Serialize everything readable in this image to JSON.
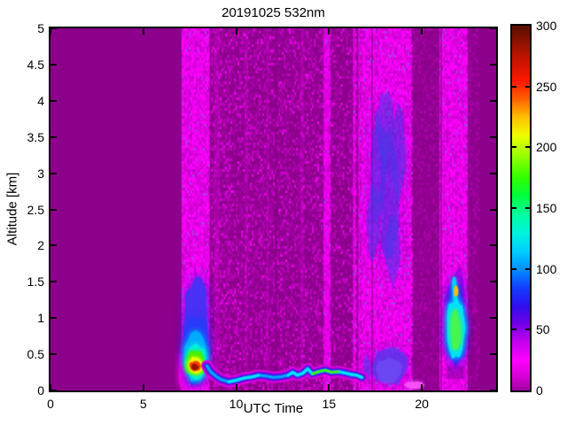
{
  "chart_data": {
    "type": "heatmap",
    "title": "20191025 532nm",
    "xlabel": "UTC Time",
    "ylabel": "Altitude [km]",
    "xlim": [
      0,
      24
    ],
    "ylim": [
      0,
      5
    ],
    "clim": [
      0,
      300
    ],
    "x_ticks": [
      {
        "v": 0,
        "label": "0"
      },
      {
        "v": 5,
        "label": "5"
      },
      {
        "v": 10,
        "label": "10"
      },
      {
        "v": 15,
        "label": "15"
      },
      {
        "v": 20,
        "label": "20"
      }
    ],
    "y_ticks": [
      {
        "v": 0,
        "label": "0"
      },
      {
        "v": 0.5,
        "label": "0.5"
      },
      {
        "v": 1,
        "label": "1"
      },
      {
        "v": 1.5,
        "label": "1.5"
      },
      {
        "v": 2,
        "label": "2"
      },
      {
        "v": 2.5,
        "label": "2.5"
      },
      {
        "v": 3,
        "label": "3"
      },
      {
        "v": 3.5,
        "label": "3.5"
      },
      {
        "v": 4,
        "label": "4"
      },
      {
        "v": 4.5,
        "label": "4.5"
      },
      {
        "v": 5,
        "label": "5"
      }
    ],
    "colorbar_ticks": [
      {
        "v": 0,
        "label": "0"
      },
      {
        "v": 50,
        "label": "50"
      },
      {
        "v": 100,
        "label": "100"
      },
      {
        "v": 150,
        "label": "150"
      },
      {
        "v": 200,
        "label": "200"
      },
      {
        "v": 250,
        "label": "250"
      },
      {
        "v": 300,
        "label": "300"
      }
    ],
    "background_color": "#8C008C",
    "colormap_stops": [
      [
        0,
        "#A000A0"
      ],
      [
        12,
        "#D800D8"
      ],
      [
        25,
        "#FF00FF"
      ],
      [
        40,
        "#C800F0"
      ],
      [
        55,
        "#7100E8"
      ],
      [
        70,
        "#3010F0"
      ],
      [
        85,
        "#1440FF"
      ],
      [
        100,
        "#0090FF"
      ],
      [
        115,
        "#00D0FF"
      ],
      [
        130,
        "#00F5E0"
      ],
      [
        145,
        "#00FFA0"
      ],
      [
        160,
        "#00FF40"
      ],
      [
        175,
        "#30FF00"
      ],
      [
        195,
        "#A0FF00"
      ],
      [
        210,
        "#F0FF00"
      ],
      [
        225,
        "#FFC000"
      ],
      [
        240,
        "#FF6000"
      ],
      [
        255,
        "#FF1800"
      ],
      [
        275,
        "#BE1400"
      ],
      [
        300,
        "#5A1000"
      ]
    ],
    "speckle": {
      "bright": {
        "base": "#D800D8",
        "density": 0.8,
        "colors": [
          "#FF00FF",
          "#F000F0",
          "#E400E4",
          "#C400CC",
          "#AE3CE6"
        ],
        "weights": [
          0.3,
          0.25,
          0.25,
          0.15,
          0.05
        ]
      },
      "medium": {
        "base": "#8C008C",
        "density": 0.5,
        "colors": [
          "#9C009C",
          "#AE00AE",
          "#C200C2",
          "#DA00DA",
          "#F000F0"
        ],
        "weights": [
          0.35,
          0.3,
          0.2,
          0.1,
          0.05
        ]
      },
      "faint": {
        "base": "#8C008C",
        "density": 0.45,
        "colors": [
          "#980098",
          "#A400A4",
          "#B200B2"
        ],
        "weights": [
          0.5,
          0.35,
          0.15
        ]
      }
    },
    "noise_bands": [
      {
        "t0": 7.06,
        "t1": 8.55,
        "type": "bright"
      },
      {
        "t0": 8.55,
        "t1": 9.6,
        "type": "medium",
        "density": 0.62
      },
      {
        "t0": 9.6,
        "t1": 14.72,
        "type": "medium",
        "density": 0.5
      },
      {
        "t0": 14.72,
        "t1": 15.06,
        "type": "bright",
        "density": 0.7
      },
      {
        "t0": 15.06,
        "t1": 16.28,
        "type": "medium",
        "density": 0.42
      },
      {
        "t0": 16.3,
        "t1": 16.44,
        "type": "bright",
        "density": 0.6
      },
      {
        "t0": 16.44,
        "t1": 16.58,
        "type": "medium",
        "density": 0.4
      },
      {
        "t0": 16.58,
        "t1": 16.72,
        "type": "bright",
        "density": 0.55
      },
      {
        "t0": 16.75,
        "t1": 19.45,
        "type": "bright"
      },
      {
        "t0": 19.45,
        "t1": 20.95,
        "type": "faint"
      },
      {
        "t0": 20.95,
        "t1": 22.45,
        "type": "bright"
      },
      {
        "t0": 22.45,
        "t1": 23.05,
        "type": "faint",
        "density": 0.35
      }
    ],
    "faint_stripes": [
      {
        "t": 8.95,
        "w": 0.3
      },
      {
        "t": 10.55,
        "w": 0.18
      },
      {
        "t": 13.55,
        "w": 0.18
      },
      {
        "t": 11.7,
        "w": 0.12
      }
    ],
    "dark_lines": [
      {
        "t": 12.15,
        "w": 0.1
      },
      {
        "t": 17.32,
        "w": 0.08
      },
      {
        "t": 21.04,
        "w": 0.08
      },
      {
        "t": 8.62,
        "w": 0.06
      }
    ],
    "cloud_color": "rgba(70,60,235,0.30)",
    "cloud_patches": [
      {
        "t": 17.65,
        "a": 3.05,
        "rt": 0.45,
        "ra": 0.75
      },
      {
        "t": 18.25,
        "a": 2.65,
        "rt": 0.55,
        "ra": 0.85
      },
      {
        "t": 18.7,
        "a": 3.3,
        "rt": 0.42,
        "ra": 0.65
      },
      {
        "t": 18.0,
        "a": 3.6,
        "rt": 0.5,
        "ra": 0.5
      },
      {
        "t": 18.45,
        "a": 1.95,
        "rt": 0.4,
        "ra": 0.5
      },
      {
        "t": 17.4,
        "a": 2.3,
        "rt": 0.35,
        "ra": 0.5
      }
    ],
    "low_haze_layers": [
      {
        "c": "rgba(80,60,240,0.45)",
        "t0": 17.35,
        "t1": 19.25,
        "a0": 0.08,
        "a1": 0.58,
        "b": 5
      },
      {
        "c": "rgba(110,80,245,0.40)",
        "t0": 17.5,
        "t1": 18.95,
        "a0": 0.1,
        "a1": 0.45,
        "b": 4
      },
      {
        "c": "rgba(80,60,240,0.35)",
        "t0": 16.82,
        "t1": 17.2,
        "a0": 0.12,
        "a1": 0.5,
        "b": 4
      }
    ],
    "morning_plume_layers": [
      {
        "c": "rgba(232,0,232,0.9)",
        "t0": 6.92,
        "t1": 7.18,
        "a0": 0.02,
        "a1": 0.55,
        "b": 3
      },
      {
        "c": "rgba(70,50,245,0.70)",
        "t0": 7.1,
        "t1": 8.52,
        "a0": 0.1,
        "a1": 1.55,
        "b": 6
      },
      {
        "c": "rgba(40,60,250,0.80)",
        "t0": 7.15,
        "t1": 8.48,
        "a0": 0.12,
        "a1": 1.05,
        "b": 4
      },
      {
        "c": "rgba(0,170,255,0.90)",
        "t0": 7.22,
        "t1": 8.44,
        "a0": 0.15,
        "a1": 0.8,
        "b": 3
      },
      {
        "c": "rgba(0,240,220,0.90)",
        "t0": 7.28,
        "t1": 8.4,
        "a0": 0.18,
        "a1": 0.62,
        "b": 3
      },
      {
        "c": "rgba(70,240,0,0.95)",
        "t0": 7.32,
        "t1": 8.3,
        "a0": 0.21,
        "a1": 0.55,
        "b": 2
      },
      {
        "c": "rgba(235,255,0,0.95)",
        "t0": 7.42,
        "t1": 8.18,
        "a0": 0.25,
        "a1": 0.46,
        "b": 2
      },
      {
        "c": "rgba(255,70,0,0.95)",
        "t0": 7.5,
        "t1": 8.06,
        "a0": 0.27,
        "a1": 0.4,
        "b": 1
      },
      {
        "c": "rgba(150,20,0,0.9)",
        "t0": 7.6,
        "t1": 7.94,
        "a0": 0.285,
        "a1": 0.365,
        "b": 1
      }
    ],
    "surface_layer": {
      "points": [
        [
          8.42,
          0.34
        ],
        [
          8.62,
          0.26
        ],
        [
          8.9,
          0.2
        ],
        [
          9.2,
          0.15
        ],
        [
          9.6,
          0.12
        ],
        [
          10.0,
          0.14
        ],
        [
          10.4,
          0.17
        ],
        [
          10.9,
          0.19
        ],
        [
          11.2,
          0.21
        ],
        [
          11.6,
          0.2
        ],
        [
          12.0,
          0.18
        ],
        [
          12.4,
          0.19
        ],
        [
          12.8,
          0.21
        ],
        [
          13.05,
          0.25
        ],
        [
          13.3,
          0.21
        ],
        [
          13.6,
          0.24
        ],
        [
          13.85,
          0.3
        ],
        [
          14.1,
          0.23
        ],
        [
          14.45,
          0.26
        ],
        [
          14.8,
          0.28
        ],
        [
          15.15,
          0.25
        ],
        [
          15.5,
          0.26
        ],
        [
          15.9,
          0.24
        ],
        [
          16.2,
          0.22
        ],
        [
          16.5,
          0.21
        ],
        [
          16.78,
          0.18
        ]
      ],
      "strokes": [
        {
          "c": "#E000E0",
          "w": 13
        },
        {
          "c": "#8A00D8",
          "w": 9
        },
        {
          "c": "#2A30EE",
          "w": 6
        },
        {
          "c": "#00A8FF",
          "w": 3
        }
      ],
      "cyan_strong": {
        "ranges": [
          {
            "t0": 9.7,
            "t1": 11.3
          },
          {
            "t0": 12.7,
            "t1": 14.1
          },
          {
            "t0": 14.2,
            "t1": 16.0
          },
          {
            "t0": 16.3,
            "t1": 16.8
          }
        ],
        "c": "#00E0FF",
        "w": 3.5
      },
      "green_segments": {
        "ranges": [
          {
            "t0": 14.3,
            "t1": 15.6
          }
        ],
        "c": "#49F000",
        "w": 2.5
      }
    },
    "evening_plume": {
      "layers": [
        {
          "c": "rgba(150,0,230,0.55)",
          "t0": 21.22,
          "t1": 22.4,
          "a0": 0.3,
          "a1": 1.7,
          "b": 5
        },
        {
          "c": "rgba(45,45,245,0.85)",
          "t0": 21.3,
          "t1": 22.36,
          "a0": 0.38,
          "a1": 1.45,
          "b": 4
        },
        {
          "c": "rgba(0,225,255,0.95)",
          "t0": 21.38,
          "t1": 22.3,
          "a0": 0.44,
          "a1": 1.28,
          "b": 3
        },
        {
          "c": "rgba(70,245,80,0.9)",
          "t0": 21.55,
          "t1": 22.08,
          "a0": 0.52,
          "a1": 1.1,
          "b": 3
        },
        {
          "c": "rgba(0,210,255,0.9)",
          "t0": 21.64,
          "t1": 21.86,
          "a0": 1.25,
          "a1": 1.58,
          "b": 2
        },
        {
          "c": "rgba(255,190,0,0.95)",
          "t0": 21.78,
          "t1": 21.9,
          "a0": 1.3,
          "a1": 1.44,
          "b": 1
        }
      ],
      "notch": {
        "c": "rgba(110,0,150,0.45)",
        "t0": 21.35,
        "t1": 22.3,
        "a0": 0.16,
        "a1": 0.34
      }
    },
    "surface_smudge": {
      "c": "rgba(250,80,250,0.8)",
      "t0": 19.0,
      "t1": 20.15,
      "a0": 0.03,
      "a1": 0.12,
      "b": 2
    }
  }
}
